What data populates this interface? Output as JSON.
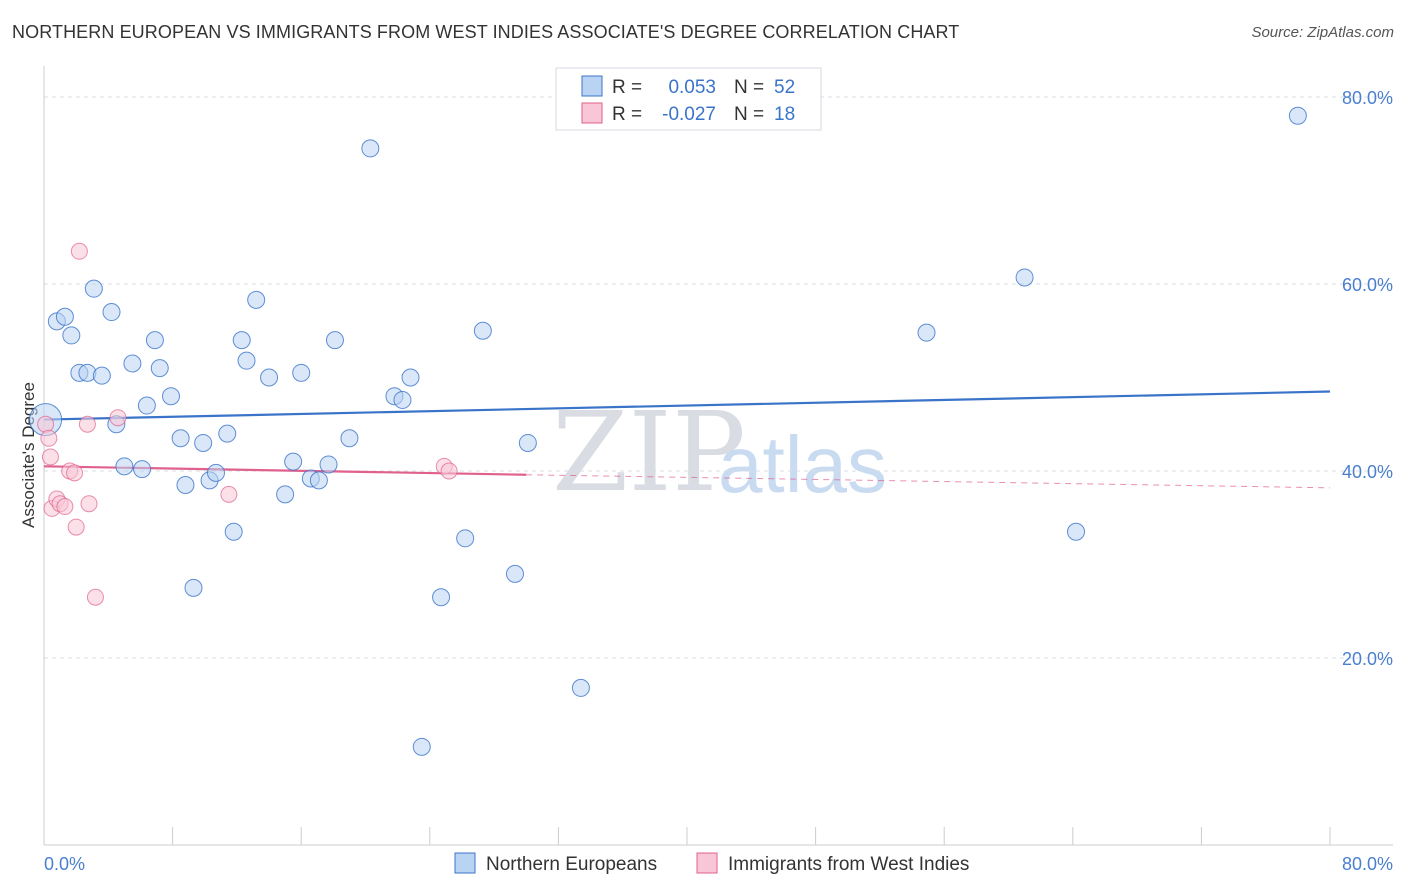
{
  "header": {
    "title": "NORTHERN EUROPEAN VS IMMIGRANTS FROM WEST INDIES ASSOCIATE'S DEGREE CORRELATION CHART",
    "source": "Source: ZipAtlas.com"
  },
  "colors": {
    "blue": "#3a74c9",
    "blue_fill": "#b9d3f2",
    "pink": "#e0608e",
    "pink_fill": "#f8c6d6",
    "grid": "#d9dde3",
    "axis_label": "#4a7fcf"
  },
  "chart_data": {
    "type": "scatter",
    "title": "NORTHERN EUROPEAN VS IMMIGRANTS FROM WEST INDIES ASSOCIATE'S DEGREE CORRELATION CHART",
    "xlabel": "",
    "ylabel": "Associate's Degree",
    "xlim": [
      0,
      80
    ],
    "ylim": [
      0,
      80
    ],
    "x_tick_labels": [
      "0.0%",
      "80.0%"
    ],
    "y_ticks": [
      20,
      40,
      60,
      80
    ],
    "y_tick_labels": [
      "20.0%",
      "40.0%",
      "60.0%",
      "80.0%"
    ],
    "grid": true,
    "watermark": [
      "ZIP",
      "atlas"
    ],
    "stats": [
      {
        "r_label": "R =",
        "r": "0.053",
        "n_label": "N =",
        "n": "52"
      },
      {
        "r_label": "R =",
        "r": "-0.027",
        "n_label": "N =",
        "n": "18"
      }
    ],
    "series": [
      {
        "name": "Northern Europeans",
        "points": [
          [
            0.1,
            45.5
          ],
          [
            0.8,
            56.0
          ],
          [
            1.3,
            56.5
          ],
          [
            1.7,
            54.5
          ],
          [
            2.2,
            50.5
          ],
          [
            2.7,
            50.5
          ],
          [
            3.1,
            59.5
          ],
          [
            3.6,
            50.2
          ],
          [
            4.2,
            57.0
          ],
          [
            4.5,
            45.0
          ],
          [
            5.0,
            40.5
          ],
          [
            5.5,
            51.5
          ],
          [
            6.1,
            40.2
          ],
          [
            6.4,
            47.0
          ],
          [
            6.9,
            54.0
          ],
          [
            7.2,
            51.0
          ],
          [
            7.9,
            48.0
          ],
          [
            8.5,
            43.5
          ],
          [
            8.8,
            38.5
          ],
          [
            9.3,
            27.5
          ],
          [
            9.9,
            43.0
          ],
          [
            10.3,
            39.0
          ],
          [
            10.7,
            39.8
          ],
          [
            11.4,
            44.0
          ],
          [
            11.8,
            33.5
          ],
          [
            12.3,
            54.0
          ],
          [
            12.6,
            51.8
          ],
          [
            13.2,
            58.3
          ],
          [
            14.0,
            50.0
          ],
          [
            15.0,
            37.5
          ],
          [
            15.5,
            41.0
          ],
          [
            16.0,
            50.5
          ],
          [
            16.6,
            39.2
          ],
          [
            17.1,
            39.0
          ],
          [
            17.7,
            40.7
          ],
          [
            18.1,
            54.0
          ],
          [
            19.0,
            43.5
          ],
          [
            20.3,
            74.5
          ],
          [
            21.8,
            48.0
          ],
          [
            22.3,
            47.6
          ],
          [
            22.8,
            50.0
          ],
          [
            23.5,
            10.5
          ],
          [
            24.7,
            26.5
          ],
          [
            26.2,
            32.8
          ],
          [
            27.3,
            55.0
          ],
          [
            29.3,
            29.0
          ],
          [
            30.1,
            43.0
          ],
          [
            33.4,
            16.8
          ],
          [
            54.9,
            54.8
          ],
          [
            61.0,
            60.7
          ],
          [
            64.2,
            33.5
          ],
          [
            78.0,
            78.0
          ]
        ],
        "trend": {
          "x": [
            0,
            80
          ],
          "y": [
            45.5,
            48.5
          ]
        }
      },
      {
        "name": "Immigrants from West Indies",
        "points": [
          [
            0.1,
            45.0
          ],
          [
            0.3,
            43.5
          ],
          [
            0.4,
            41.5
          ],
          [
            0.5,
            36.0
          ],
          [
            0.8,
            37.0
          ],
          [
            1.0,
            36.5
          ],
          [
            1.3,
            36.2
          ],
          [
            1.6,
            40.0
          ],
          [
            1.9,
            39.8
          ],
          [
            2.0,
            34.0
          ],
          [
            2.2,
            63.5
          ],
          [
            2.7,
            45.0
          ],
          [
            2.8,
            36.5
          ],
          [
            3.2,
            26.5
          ],
          [
            4.6,
            45.7
          ],
          [
            11.5,
            37.5
          ],
          [
            24.9,
            40.5
          ],
          [
            25.2,
            40.0
          ]
        ],
        "trend": {
          "x": [
            0,
            30
          ],
          "y": [
            40.5,
            39.6
          ]
        },
        "trend_dashed": {
          "x": [
            30,
            80
          ],
          "y": [
            39.6,
            38.2
          ]
        }
      }
    ]
  }
}
